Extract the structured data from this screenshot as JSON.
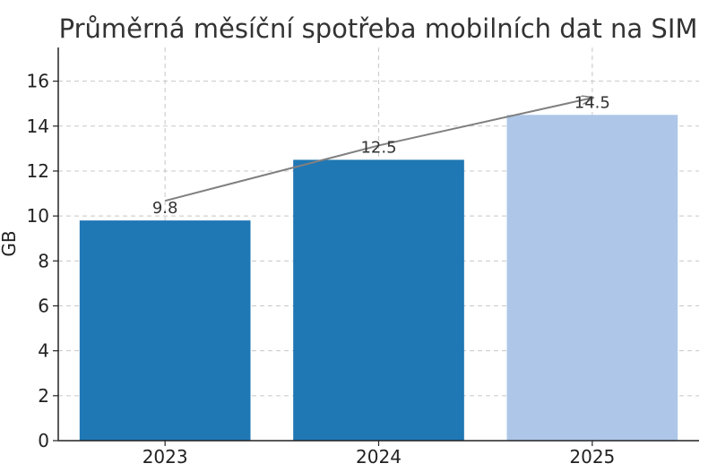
{
  "chart_data": {
    "type": "bar",
    "title": "Průměrná měsíční spotřeba mobilních dat na SIM",
    "xlabel": "",
    "ylabel": "GB",
    "categories": [
      "2023",
      "2024",
      "2025"
    ],
    "values": [
      9.8,
      12.5,
      14.5
    ],
    "data_labels": [
      "9.8",
      "12.5",
      "14.5"
    ],
    "ylim": [
      0,
      17.5
    ],
    "yticks": [
      0,
      2,
      4,
      6,
      8,
      10,
      12,
      14,
      16
    ],
    "grid": true,
    "bar_colors": [
      "#1f77b4",
      "#1f77b4",
      "#aec7e8"
    ],
    "trend_arrow": {
      "from_category": "2023",
      "to_category": "2025",
      "color": "#808080"
    }
  }
}
